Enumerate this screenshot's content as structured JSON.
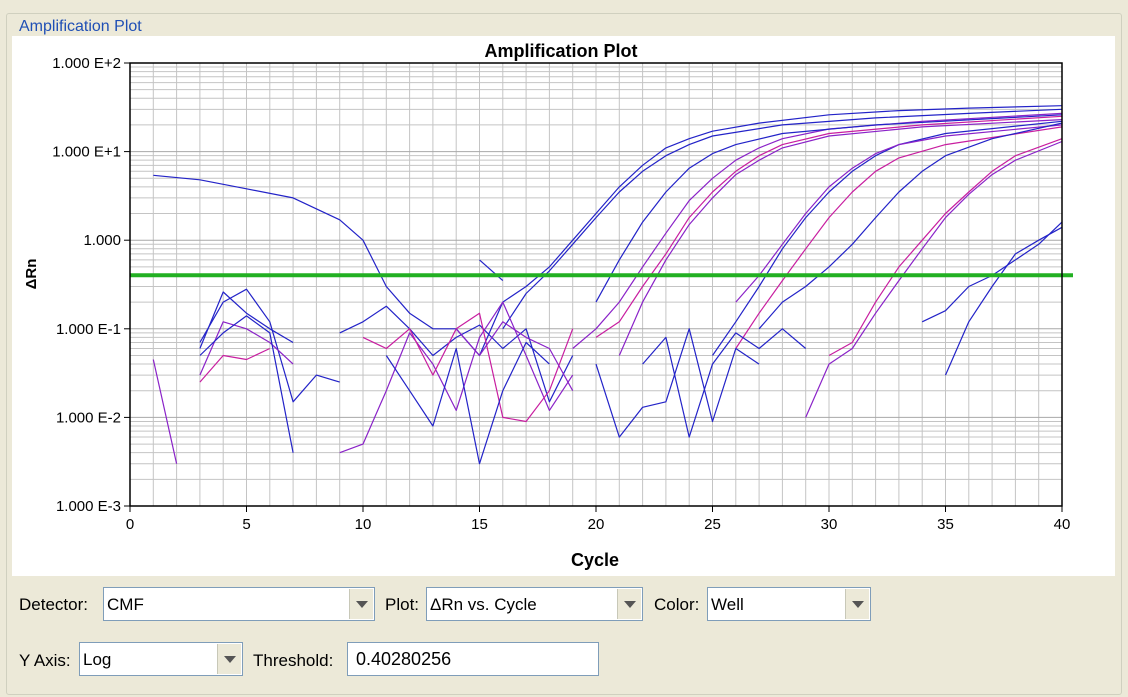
{
  "panel": {
    "title": "Amplification Plot"
  },
  "controls": {
    "detector_label": "Detector:",
    "detector_value": "CMF",
    "plot_label": "Plot:",
    "plot_value": "ΔRn vs. Cycle",
    "color_label": "Color:",
    "color_value": "Well",
    "yaxis_label": "Y Axis:",
    "yaxis_value": "Log",
    "threshold_label": "Threshold:",
    "threshold_value": "0.40280256"
  },
  "chart_data": {
    "type": "line",
    "title": "Amplification Plot",
    "xlabel": "Cycle",
    "ylabel": "ΔRn",
    "xlim": [
      0,
      40
    ],
    "ylim": [
      0.001,
      100
    ],
    "yscale": "log",
    "grid": true,
    "x_ticks": [
      "0",
      "5",
      "10",
      "15",
      "20",
      "25",
      "30",
      "35",
      "40"
    ],
    "y_ticks": [
      "1.000 E-3",
      "1.000 E-2",
      "1.000 E-1",
      "1.000",
      "1.000 E+1",
      "1.000 E+2"
    ],
    "threshold": {
      "value": 0.4028,
      "color": "#22b022"
    },
    "colors": {
      "blue": "#2323c8",
      "purple": "#8a22c8",
      "magenta": "#c81ea0"
    },
    "series": [
      {
        "color": "#2323c8",
        "points": [
          [
            1,
            5.4
          ],
          [
            3,
            4.8
          ],
          [
            5,
            3.8
          ],
          [
            7,
            3.0
          ],
          [
            9,
            1.7
          ],
          [
            10,
            1.0
          ],
          [
            11,
            0.3
          ],
          [
            12,
            0.15
          ],
          [
            13,
            0.1
          ],
          [
            14,
            0.1
          ],
          [
            15,
            0.05
          ],
          [
            16,
            0.2
          ],
          [
            17,
            0.3
          ],
          [
            18,
            0.5
          ],
          [
            19,
            1.0
          ],
          [
            20,
            2.0
          ],
          [
            21,
            4.0
          ],
          [
            22,
            7.0
          ],
          [
            23,
            11
          ],
          [
            24,
            14
          ],
          [
            25,
            17
          ],
          [
            27,
            21
          ],
          [
            30,
            26
          ],
          [
            33,
            29
          ],
          [
            36,
            31
          ],
          [
            40,
            33
          ]
        ]
      },
      {
        "color": "#2323c8",
        "points": [
          [
            16,
            0.1
          ],
          [
            17,
            0.25
          ],
          [
            18,
            0.45
          ],
          [
            19,
            0.9
          ],
          [
            20,
            1.8
          ],
          [
            21,
            3.5
          ],
          [
            22,
            6.0
          ],
          [
            23,
            9.0
          ],
          [
            24,
            12
          ],
          [
            25,
            15
          ],
          [
            28,
            20
          ],
          [
            32,
            24
          ],
          [
            36,
            27
          ],
          [
            40,
            30
          ]
        ]
      },
      {
        "color": "#8a22c8",
        "points": [
          [
            19,
            0.06
          ],
          [
            20,
            0.1
          ],
          [
            21,
            0.2
          ],
          [
            22,
            0.5
          ],
          [
            23,
            1.2
          ],
          [
            24,
            2.8
          ],
          [
            25,
            5.0
          ],
          [
            26,
            8.0
          ],
          [
            27,
            11
          ],
          [
            28,
            14
          ],
          [
            30,
            18
          ],
          [
            34,
            22
          ],
          [
            40,
            27
          ]
        ]
      },
      {
        "color": "#c81ea0",
        "points": [
          [
            20,
            0.08
          ],
          [
            21,
            0.12
          ],
          [
            22,
            0.3
          ],
          [
            23,
            0.7
          ],
          [
            24,
            1.8
          ],
          [
            25,
            3.5
          ],
          [
            26,
            6.0
          ],
          [
            27,
            9.0
          ],
          [
            28,
            12
          ],
          [
            30,
            16
          ],
          [
            34,
            20
          ],
          [
            40,
            25
          ]
        ]
      },
      {
        "color": "#8a22c8",
        "points": [
          [
            21,
            0.05
          ],
          [
            22,
            0.2
          ],
          [
            23,
            0.6
          ],
          [
            24,
            1.5
          ],
          [
            25,
            3.0
          ],
          [
            26,
            5.5
          ],
          [
            27,
            8.0
          ],
          [
            28,
            11
          ],
          [
            30,
            15
          ],
          [
            34,
            19
          ],
          [
            40,
            23
          ]
        ]
      },
      {
        "color": "#2323c8",
        "points": [
          [
            20,
            0.2
          ],
          [
            21,
            0.6
          ],
          [
            22,
            1.6
          ],
          [
            23,
            3.5
          ],
          [
            24,
            6.5
          ],
          [
            25,
            9.5
          ],
          [
            26,
            12
          ],
          [
            28,
            16
          ],
          [
            32,
            20
          ],
          [
            40,
            26
          ]
        ]
      },
      {
        "color": "#2323c8",
        "points": [
          [
            25,
            0.05
          ],
          [
            26,
            0.12
          ],
          [
            27,
            0.3
          ],
          [
            28,
            0.8
          ],
          [
            29,
            1.8
          ],
          [
            30,
            3.5
          ],
          [
            31,
            6.0
          ],
          [
            32,
            9.0
          ],
          [
            33,
            12
          ],
          [
            35,
            16
          ],
          [
            40,
            22
          ]
        ]
      },
      {
        "color": "#8a22c8",
        "points": [
          [
            26,
            0.2
          ],
          [
            27,
            0.4
          ],
          [
            28,
            0.9
          ],
          [
            29,
            2.0
          ],
          [
            30,
            4.0
          ],
          [
            31,
            6.5
          ],
          [
            32,
            9.5
          ],
          [
            33,
            12
          ],
          [
            35,
            15
          ],
          [
            40,
            20
          ]
        ]
      },
      {
        "color": "#c81ea0",
        "points": [
          [
            26,
            0.06
          ],
          [
            27,
            0.15
          ],
          [
            28,
            0.35
          ],
          [
            29,
            0.8
          ],
          [
            30,
            1.8
          ],
          [
            31,
            3.5
          ],
          [
            32,
            6.0
          ],
          [
            33,
            8.5
          ],
          [
            35,
            12
          ],
          [
            40,
            19
          ]
        ]
      },
      {
        "color": "#2323c8",
        "points": [
          [
            27,
            0.1
          ],
          [
            28,
            0.2
          ],
          [
            29,
            0.3
          ],
          [
            30,
            0.5
          ],
          [
            31,
            0.9
          ],
          [
            32,
            1.8
          ],
          [
            33,
            3.5
          ],
          [
            34,
            6.0
          ],
          [
            35,
            9.0
          ],
          [
            37,
            14
          ],
          [
            40,
            21
          ]
        ]
      },
      {
        "color": "#c81ea0",
        "points": [
          [
            30,
            0.05
          ],
          [
            31,
            0.07
          ],
          [
            32,
            0.2
          ],
          [
            33,
            0.5
          ],
          [
            34,
            1.0
          ],
          [
            35,
            2.0
          ],
          [
            36,
            3.5
          ],
          [
            37,
            6.0
          ],
          [
            38,
            9.0
          ],
          [
            40,
            14
          ]
        ]
      },
      {
        "color": "#8a22c8",
        "points": [
          [
            29,
            0.01
          ],
          [
            30,
            0.04
          ],
          [
            31,
            0.06
          ],
          [
            32,
            0.15
          ],
          [
            33,
            0.35
          ],
          [
            34,
            0.8
          ],
          [
            35,
            1.8
          ],
          [
            36,
            3.3
          ],
          [
            37,
            5.5
          ],
          [
            38,
            8.0
          ],
          [
            40,
            13
          ]
        ]
      },
      {
        "color": "#2323c8",
        "points": [
          [
            35,
            0.03
          ],
          [
            36,
            0.12
          ],
          [
            37,
            0.3
          ],
          [
            38,
            0.7
          ],
          [
            39,
            1.0
          ],
          [
            40,
            1.4
          ]
        ]
      },
      {
        "color": "#2323c8",
        "points": [
          [
            34,
            0.12
          ],
          [
            35,
            0.16
          ],
          [
            36,
            0.3
          ],
          [
            37,
            0.4
          ],
          [
            38,
            0.6
          ],
          [
            39,
            0.9
          ],
          [
            40,
            1.6
          ]
        ]
      },
      {
        "color": "#2323c8",
        "points": [
          [
            3,
            0.07
          ],
          [
            4,
            0.2
          ],
          [
            5,
            0.28
          ],
          [
            6,
            0.12
          ],
          [
            7,
            0.015
          ],
          [
            8,
            0.03
          ],
          [
            9,
            0.025
          ]
        ]
      },
      {
        "color": "#8a22c8",
        "points": [
          [
            3,
            0.03
          ],
          [
            4,
            0.12
          ],
          [
            5,
            0.1
          ],
          [
            6,
            0.07
          ],
          [
            7,
            0.04
          ]
        ]
      },
      {
        "color": "#2323c8",
        "points": [
          [
            3,
            0.05
          ],
          [
            4,
            0.09
          ],
          [
            5,
            0.14
          ],
          [
            6,
            0.09
          ],
          [
            7,
            0.004
          ]
        ]
      },
      {
        "color": "#c81ea0",
        "points": [
          [
            3,
            0.025
          ],
          [
            4,
            0.05
          ],
          [
            5,
            0.045
          ],
          [
            6,
            0.06
          ]
        ]
      },
      {
        "color": "#8a22c8",
        "points": [
          [
            1,
            0.045
          ],
          [
            2,
            0.003
          ]
        ]
      },
      {
        "color": "#2323c8",
        "points": [
          [
            3,
            0.06
          ],
          [
            4,
            0.26
          ],
          [
            5,
            0.15
          ],
          [
            6,
            0.1
          ],
          [
            7,
            0.07
          ]
        ]
      },
      {
        "color": "#2323c8",
        "points": [
          [
            9,
            0.09
          ],
          [
            10,
            0.12
          ],
          [
            11,
            0.18
          ],
          [
            12,
            0.1
          ],
          [
            13,
            0.05
          ],
          [
            14,
            0.08
          ],
          [
            15,
            0.11
          ],
          [
            16,
            0.06
          ],
          [
            17,
            0.1
          ],
          [
            18,
            0.015
          ],
          [
            19,
            0.05
          ]
        ]
      },
      {
        "color": "#8a22c8",
        "points": [
          [
            9,
            0.004
          ],
          [
            10,
            0.005
          ],
          [
            11,
            0.02
          ],
          [
            12,
            0.09
          ],
          [
            13,
            0.04
          ],
          [
            14,
            0.012
          ],
          [
            15,
            0.08
          ],
          [
            16,
            0.2
          ],
          [
            17,
            0.05
          ],
          [
            18,
            0.012
          ],
          [
            19,
            0.03
          ]
        ]
      },
      {
        "color": "#c81ea0",
        "points": [
          [
            10,
            0.08
          ],
          [
            11,
            0.06
          ],
          [
            12,
            0.1
          ],
          [
            13,
            0.03
          ],
          [
            14,
            0.1
          ],
          [
            15,
            0.15
          ],
          [
            16,
            0.01
          ],
          [
            17,
            0.009
          ],
          [
            18,
            0.02
          ],
          [
            19,
            0.1
          ]
        ]
      },
      {
        "color": "#2323c8",
        "points": [
          [
            11,
            0.05
          ],
          [
            12,
            0.02
          ],
          [
            13,
            0.008
          ],
          [
            14,
            0.06
          ],
          [
            15,
            0.003
          ],
          [
            16,
            0.02
          ],
          [
            17,
            0.07
          ],
          [
            18,
            0.04
          ]
        ]
      },
      {
        "color": "#2323c8",
        "points": [
          [
            20,
            0.04
          ],
          [
            21,
            0.006
          ],
          [
            22,
            0.013
          ],
          [
            23,
            0.015
          ],
          [
            24,
            0.1
          ],
          [
            25,
            0.009
          ],
          [
            26,
            0.06
          ],
          [
            27,
            0.04
          ]
        ]
      },
      {
        "color": "#2323c8",
        "points": [
          [
            22,
            0.04
          ],
          [
            23,
            0.08
          ],
          [
            24,
            0.006
          ],
          [
            25,
            0.04
          ],
          [
            26,
            0.09
          ],
          [
            27,
            0.06
          ],
          [
            28,
            0.1
          ],
          [
            29,
            0.06
          ]
        ]
      },
      {
        "color": "#8a22c8",
        "points": [
          [
            14,
            0.1
          ],
          [
            15,
            0.05
          ],
          [
            16,
            0.12
          ],
          [
            17,
            0.08
          ],
          [
            18,
            0.06
          ],
          [
            19,
            0.02
          ]
        ]
      },
      {
        "color": "#2323c8",
        "points": [
          [
            15,
            0.6
          ],
          [
            16,
            0.35
          ]
        ]
      }
    ]
  }
}
